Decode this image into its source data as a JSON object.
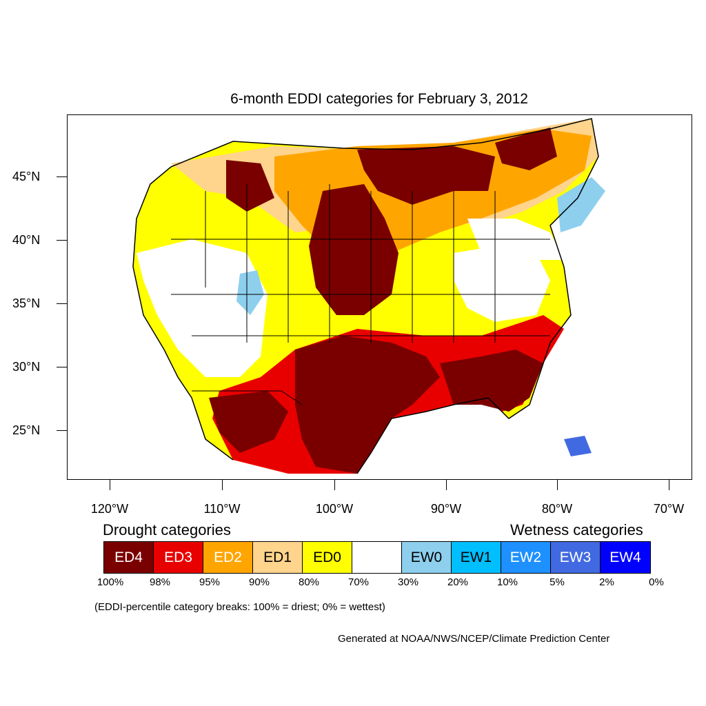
{
  "title": "6-month EDDI categories for February 3, 2012",
  "lat_labels": [
    "45°N",
    "40°N",
    "35°N",
    "30°N",
    "25°N"
  ],
  "lon_labels": [
    "120°W",
    "110°W",
    "100°W",
    "90°W",
    "80°W",
    "70°W"
  ],
  "legend": {
    "drought_heading": "Drought categories",
    "wetness_heading": "Wetness categories",
    "categories": [
      {
        "label": "ED4",
        "color": "#7a0000",
        "text_color": "#ffffff"
      },
      {
        "label": "ED3",
        "color": "#e80000",
        "text_color": "#ffffff"
      },
      {
        "label": "ED2",
        "color": "#ffa500",
        "text_color": "#ffffff"
      },
      {
        "label": "ED1",
        "color": "#ffd48c",
        "text_color": "#000000"
      },
      {
        "label": "ED0",
        "color": "#ffff00",
        "text_color": "#000000"
      },
      {
        "label": "",
        "color": "#ffffff",
        "text_color": "#000000"
      },
      {
        "label": "EW0",
        "color": "#8ecfee",
        "text_color": "#000000"
      },
      {
        "label": "EW1",
        "color": "#00bfff",
        "text_color": "#000000"
      },
      {
        "label": "EW2",
        "color": "#1e90ff",
        "text_color": "#ffffff"
      },
      {
        "label": "EW3",
        "color": "#4169e1",
        "text_color": "#ffffff"
      },
      {
        "label": "EW4",
        "color": "#0000ff",
        "text_color": "#ffffff"
      }
    ],
    "percent_breaks": [
      "100%",
      "98%",
      "95%",
      "90%",
      "80%",
      "70%",
      "30%",
      "20%",
      "10%",
      "5%",
      "2%",
      "0%"
    ]
  },
  "breaks_note": "(EDDI-percentile category breaks: 100% = driest; 0% = wettest)",
  "credit": "Generated at NOAA/NWS/NCEP/Climate Prediction Center"
}
